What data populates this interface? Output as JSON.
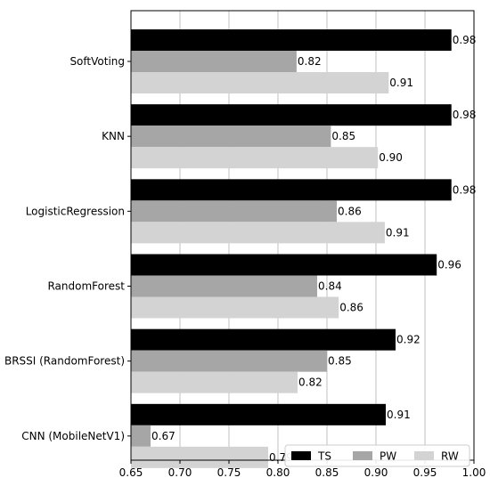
{
  "chart_data": {
    "type": "bar",
    "orientation": "horizontal",
    "categories": [
      "SoftVoting",
      "KNN",
      "LogisticRegression",
      "RandomForest",
      "BRSSI (RandomForest)",
      "CNN (MobileNetV1)"
    ],
    "series": [
      {
        "name": "TS",
        "color": "#000000",
        "values": [
          0.977,
          0.977,
          0.977,
          0.962,
          0.92,
          0.91
        ],
        "labels": [
          "0.98",
          "0.98",
          "0.98",
          "0.96",
          "0.92",
          "0.91"
        ]
      },
      {
        "name": "PW",
        "color": "#a6a6a6",
        "values": [
          0.819,
          0.854,
          0.86,
          0.84,
          0.85,
          0.67
        ],
        "labels": [
          "0.82",
          "0.85",
          "0.86",
          "0.84",
          "0.85",
          "0.67"
        ]
      },
      {
        "name": "RW",
        "color": "#d3d3d3",
        "values": [
          0.913,
          0.902,
          0.909,
          0.862,
          0.82,
          0.79
        ],
        "labels": [
          "0.91",
          "0.90",
          "0.91",
          "0.86",
          "0.82",
          "0.79"
        ]
      }
    ],
    "xlim": [
      0.65,
      1.0
    ],
    "xticks": [
      "0.65",
      "0.70",
      "0.75",
      "0.80",
      "0.85",
      "0.90",
      "0.95",
      "1.00"
    ],
    "xtick_values": [
      0.65,
      0.7,
      0.75,
      0.8,
      0.85,
      0.9,
      0.95,
      1.0
    ],
    "grid": "vertical",
    "legend_position": "bottom-right",
    "title": "",
    "xlabel": "",
    "ylabel": ""
  }
}
